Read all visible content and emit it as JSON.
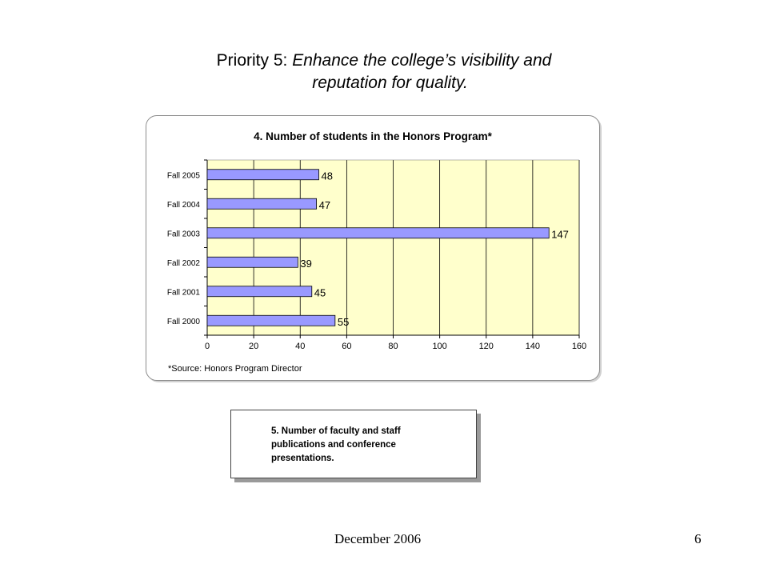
{
  "slide": {
    "title_prefix": "Priority 5:  ",
    "title_italic_1": "Enhance the college’s visibility and",
    "title_italic_2": "reputation for quality."
  },
  "chart_data": {
    "type": "bar",
    "orientation": "horizontal",
    "title": "4.  Number of students in the Honors Program*",
    "categories": [
      "Fall 2005",
      "Fall 2004",
      "Fall 2003",
      "Fall 2002",
      "Fall 2001",
      "Fall 2000"
    ],
    "values": [
      48,
      47,
      147,
      39,
      45,
      55
    ],
    "data_labels": [
      "48",
      "47",
      "147",
      "39",
      "45",
      "55"
    ],
    "xlim": [
      0,
      160
    ],
    "x_ticks": [
      0,
      20,
      40,
      60,
      80,
      100,
      120,
      140,
      160
    ],
    "grid": true,
    "legend": "none",
    "source_note": "*Source:  Honors Program Director",
    "colors": {
      "bar_fill": "#9999ff",
      "bar_stroke": "#000000",
      "plot_background": "#ffffcc",
      "gridline": "#000000"
    }
  },
  "note_box": {
    "text_line_1": "5.  Number of faculty and staff",
    "text_line_2": "publications and conference",
    "text_line_3": "presentations."
  },
  "footer": {
    "date": "December 2006",
    "page": "6"
  }
}
